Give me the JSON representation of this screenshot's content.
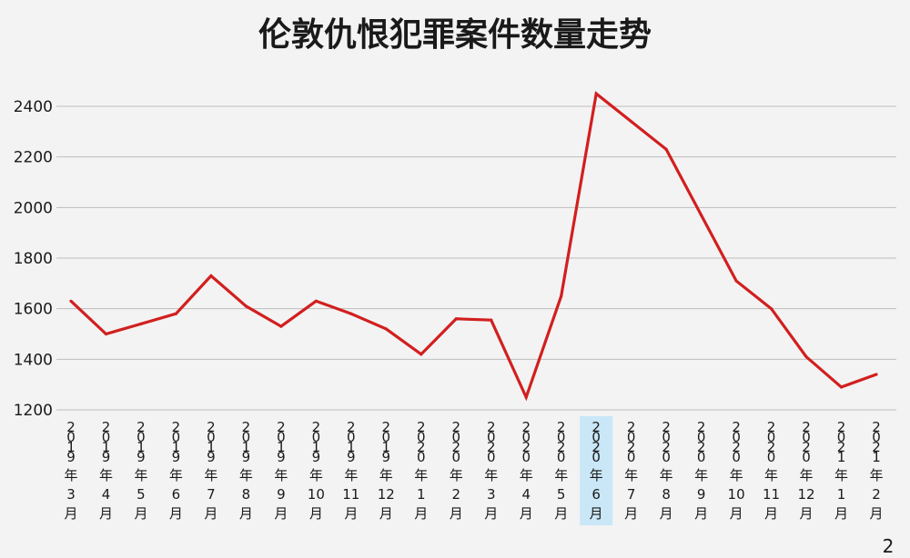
{
  "chart_data": {
    "type": "line",
    "title": "伦敦仇恨犯罪案件数量走势",
    "xlabel": "",
    "ylabel": "",
    "ylim": [
      1200,
      2500
    ],
    "yticks": [
      1200,
      1400,
      1600,
      1800,
      2000,
      2200,
      2400
    ],
    "grid": true,
    "categories": [
      "2019年3月",
      "2019年4月",
      "2019年5月",
      "2019年6月",
      "2019年7月",
      "2019年8月",
      "2019年9月",
      "2019年10月",
      "2019年11月",
      "2019年12月",
      "2020年1月",
      "2020年2月",
      "2020年3月",
      "2020年4月",
      "2020年5月",
      "2020年6月",
      "2020年7月",
      "2020年8月",
      "2020年9月",
      "2020年10月",
      "2020年11月",
      "2020年12月",
      "2021年1月",
      "2021年2月"
    ],
    "series": [
      {
        "color": "#d21f1f",
        "values": [
          1630,
          1500,
          1540,
          1580,
          1730,
          1610,
          1530,
          1630,
          1580,
          1520,
          1420,
          1560,
          1555,
          1250,
          1650,
          2450,
          2340,
          2230,
          1970,
          1710,
          1600,
          1410,
          1290,
          1340
        ]
      }
    ],
    "highlighted_category": "2020年6月",
    "highlight_color": "#c9e7f7"
  },
  "corner_mark": "2"
}
